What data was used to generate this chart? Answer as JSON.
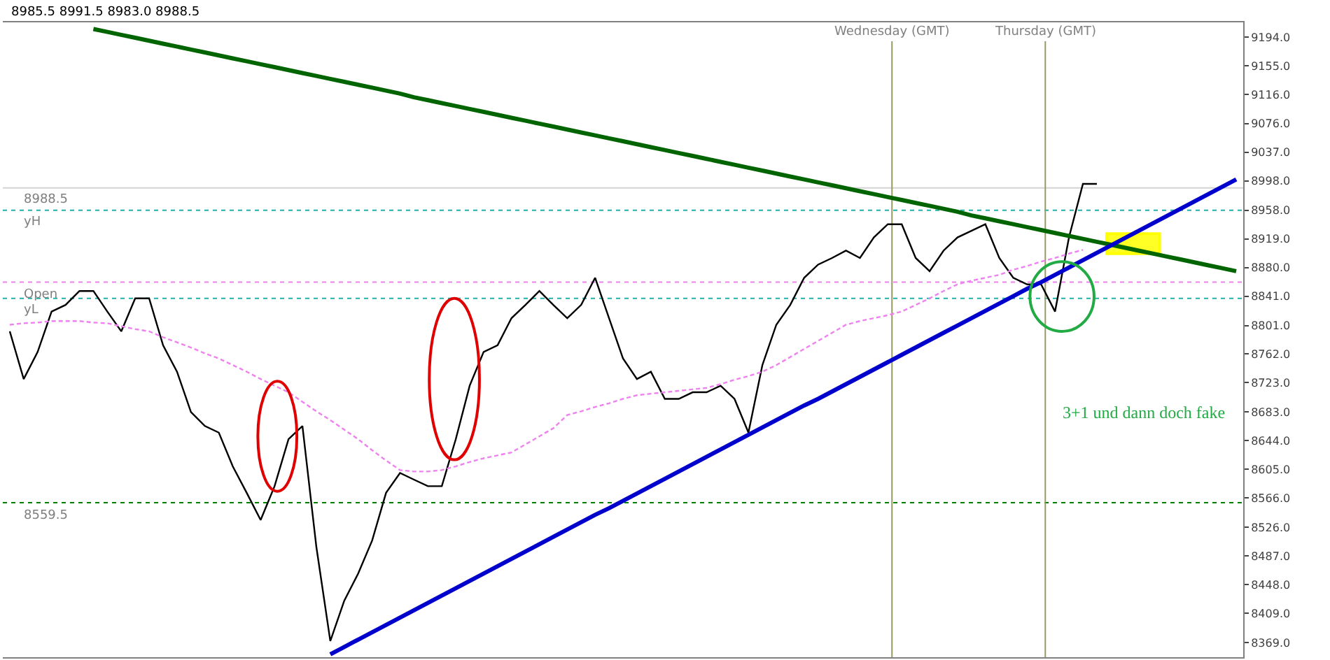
{
  "chart_data": {
    "type": "line",
    "categories": [
      null,
      null,
      null,
      null,
      null,
      null,
      null,
      null,
      null,
      null,
      null,
      null,
      null,
      null,
      null,
      null,
      null,
      null,
      null,
      null,
      null,
      null,
      null,
      null,
      null,
      null,
      null,
      null,
      null,
      null,
      null,
      null,
      null,
      null,
      null,
      null,
      null,
      null,
      null,
      null,
      null,
      null,
      null,
      null,
      null,
      null,
      null,
      null,
      null,
      null,
      null,
      null,
      null,
      null,
      null,
      null,
      null,
      null,
      null,
      null,
      null,
      null,
      null,
      null,
      null,
      null,
      null,
      null,
      null,
      null,
      null,
      null,
      null,
      null,
      null,
      null,
      null,
      null,
      null,
      null,
      null,
      null,
      null,
      null,
      null,
      null,
      null,
      null,
      null
    ],
    "series": [
      {
        "color": "#000000",
        "line_style": "solid",
        "values": [
          8793,
          8728,
          8765,
          8820,
          8829,
          8848,
          8848,
          8820,
          8793,
          8838,
          8838,
          8774,
          8738,
          8683,
          8664,
          8655,
          8609,
          8573,
          8536,
          8582,
          8646,
          8664,
          8499,
          8371,
          8426,
          8463,
          8508,
          8573,
          8600,
          8591,
          8582,
          8582,
          8646,
          8719,
          8765,
          8774,
          8811,
          8829,
          8848,
          8829,
          8811,
          8829,
          8866,
          8811,
          8756,
          8728,
          8738,
          8701,
          8701,
          8710,
          8710,
          8719,
          8701,
          8655,
          8747,
          8802,
          8829,
          8866,
          8884,
          8893,
          8903,
          8893,
          8921,
          8939,
          8939,
          8893,
          8875,
          8903,
          8921,
          8930,
          8939,
          8893,
          8866,
          8857,
          8857,
          8820,
          8921,
          8994,
          8994,
          null,
          null,
          null,
          null,
          null,
          null,
          null,
          null,
          null,
          null
        ]
      },
      {
        "color": "#ee82ee",
        "line_style": "dashed",
        "values": [
          8802,
          8804,
          8805,
          8807,
          8807,
          8807,
          8805,
          8804,
          8800,
          8796,
          8793,
          8785,
          8778,
          8771,
          8763,
          8756,
          8747,
          8738,
          8728,
          8719,
          8710,
          8697,
          8684,
          8672,
          8659,
          8646,
          8631,
          8617,
          8604,
          8602,
          8602,
          8604,
          8609,
          8615,
          8620,
          8624,
          8628,
          8639,
          8650,
          8661,
          8679,
          8684,
          8690,
          8695,
          8701,
          8706,
          8708,
          8710,
          8712,
          8714,
          8716,
          8721,
          8727,
          8732,
          8738,
          8747,
          8758,
          8769,
          8780,
          8791,
          8802,
          8807,
          8811,
          8815,
          8820,
          8829,
          8838,
          8848,
          8857,
          8862,
          8866,
          8870,
          8877,
          8882,
          8888,
          8893,
          8899,
          8904,
          null,
          null,
          null,
          null,
          null,
          null,
          null,
          null,
          null,
          null,
          null
        ]
      },
      {
        "color": "#006400",
        "line_style": "solid",
        "values": [
          null,
          null,
          null,
          null,
          null,
          null,
          9205,
          9201,
          9197,
          9193,
          9189,
          9185,
          9181,
          9177,
          9173,
          9169,
          9165,
          9161,
          9157,
          9153,
          9149,
          9145,
          9141,
          9137,
          9133,
          9129,
          9125,
          9121,
          9117,
          9112,
          9108,
          9104,
          9100,
          9096,
          9092,
          9088,
          9084,
          9080,
          9076,
          9072,
          9068,
          9064,
          9060,
          9056,
          9052,
          9048,
          9044,
          9040,
          9036,
          9032,
          9028,
          9024,
          9020,
          9016,
          9012,
          9008,
          9004,
          9000,
          8996,
          8992,
          8988,
          8984,
          8980,
          8976,
          8972,
          8968,
          8964,
          8960,
          8956,
          8951,
          8947,
          8943,
          8939,
          8935,
          8931,
          8927,
          8923,
          8919,
          8915,
          8911,
          8907,
          8903,
          8899,
          8895,
          8891,
          8887,
          8883,
          8879,
          8875
        ]
      },
      {
        "color": "#0000cd",
        "line_style": "solid",
        "values": [
          null,
          null,
          null,
          null,
          null,
          null,
          null,
          null,
          null,
          null,
          null,
          null,
          null,
          null,
          null,
          null,
          null,
          null,
          null,
          null,
          null,
          null,
          null,
          8353,
          8363,
          8373,
          8383,
          8393,
          8403,
          8413,
          8423,
          8433,
          8443,
          8453,
          8463,
          8473,
          8483,
          8493,
          8503,
          8513,
          8523,
          8533,
          8543,
          8552,
          8562,
          8572,
          8582,
          8592,
          8602,
          8612,
          8622,
          8632,
          8642,
          8652,
          8662,
          8672,
          8682,
          8692,
          8701,
          8711,
          8721,
          8731,
          8741,
          8751,
          8761,
          8771,
          8781,
          8791,
          8801,
          8811,
          8821,
          8831,
          8841,
          8851,
          8860,
          8870,
          8880,
          8890,
          8900,
          8910,
          8920,
          8930,
          8940,
          8950,
          8960,
          8970,
          8980,
          8990,
          9000
        ]
      }
    ],
    "ylim": [
      8349,
      9214
    ],
    "yticks": [
      {
        "value": 8369,
        "label": "8369.0"
      },
      {
        "value": 8409,
        "label": "8409.0"
      },
      {
        "value": 8448,
        "label": "8448.0"
      },
      {
        "value": 8487,
        "label": "8487.0"
      },
      {
        "value": 8526,
        "label": "8526.0"
      },
      {
        "value": 8566,
        "label": "8566.0"
      },
      {
        "value": 8605,
        "label": "8605.0"
      },
      {
        "value": 8644,
        "label": "8644.0"
      },
      {
        "value": 8683,
        "label": "8683.0"
      },
      {
        "value": 8723,
        "label": "8723.0"
      },
      {
        "value": 8762,
        "label": "8762.0"
      },
      {
        "value": 8801,
        "label": "8801.0"
      },
      {
        "value": 8841,
        "label": "8841.0"
      },
      {
        "value": 8880,
        "label": "8880.0"
      },
      {
        "value": 8919,
        "label": "8919.0"
      },
      {
        "value": 8958,
        "label": "8958.0"
      },
      {
        "value": 8998,
        "label": "8998.0"
      },
      {
        "value": 9037,
        "label": "9037.0"
      },
      {
        "value": 9076,
        "label": "9076.0"
      },
      {
        "value": 9116,
        "label": "9116.0"
      },
      {
        "value": 9155,
        "label": "9155.0"
      },
      {
        "value": 9194,
        "label": "9194.0"
      }
    ],
    "tick_labels": "y",
    "grid": false,
    "marker": "none",
    "ref_lines": [
      {
        "axis": "y",
        "value": 8988.5,
        "label": "8988.5",
        "color": "#d3d3d3",
        "line_style": "solid"
      },
      {
        "axis": "y",
        "value": 8958,
        "label": "yH",
        "color": "#20b2aa",
        "line_style": "dotted"
      },
      {
        "axis": "y",
        "value": 8860,
        "label": "Open",
        "color": "#ee82ee",
        "line_style": "dotted"
      },
      {
        "axis": "y",
        "value": 8838,
        "label": "yL",
        "color": "#20b2aa",
        "line_style": "dotted"
      },
      {
        "axis": "y",
        "value": 8559.5,
        "label": "8559.5",
        "color": "#008000",
        "line_style": "dotted"
      }
    ],
    "annotations": [
      "8985.5 8991.5 8983.0 8988.5",
      "3+1 und dann doch fake",
      "Wednesday (GMT)",
      "Thursday (GMT)"
    ]
  }
}
